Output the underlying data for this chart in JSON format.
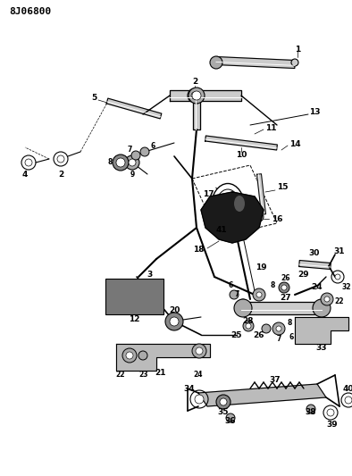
{
  "title": "8J06800",
  "bg": "#ffffff",
  "lc": "#000000",
  "fig_w": 3.94,
  "fig_h": 5.33,
  "dpi": 100
}
